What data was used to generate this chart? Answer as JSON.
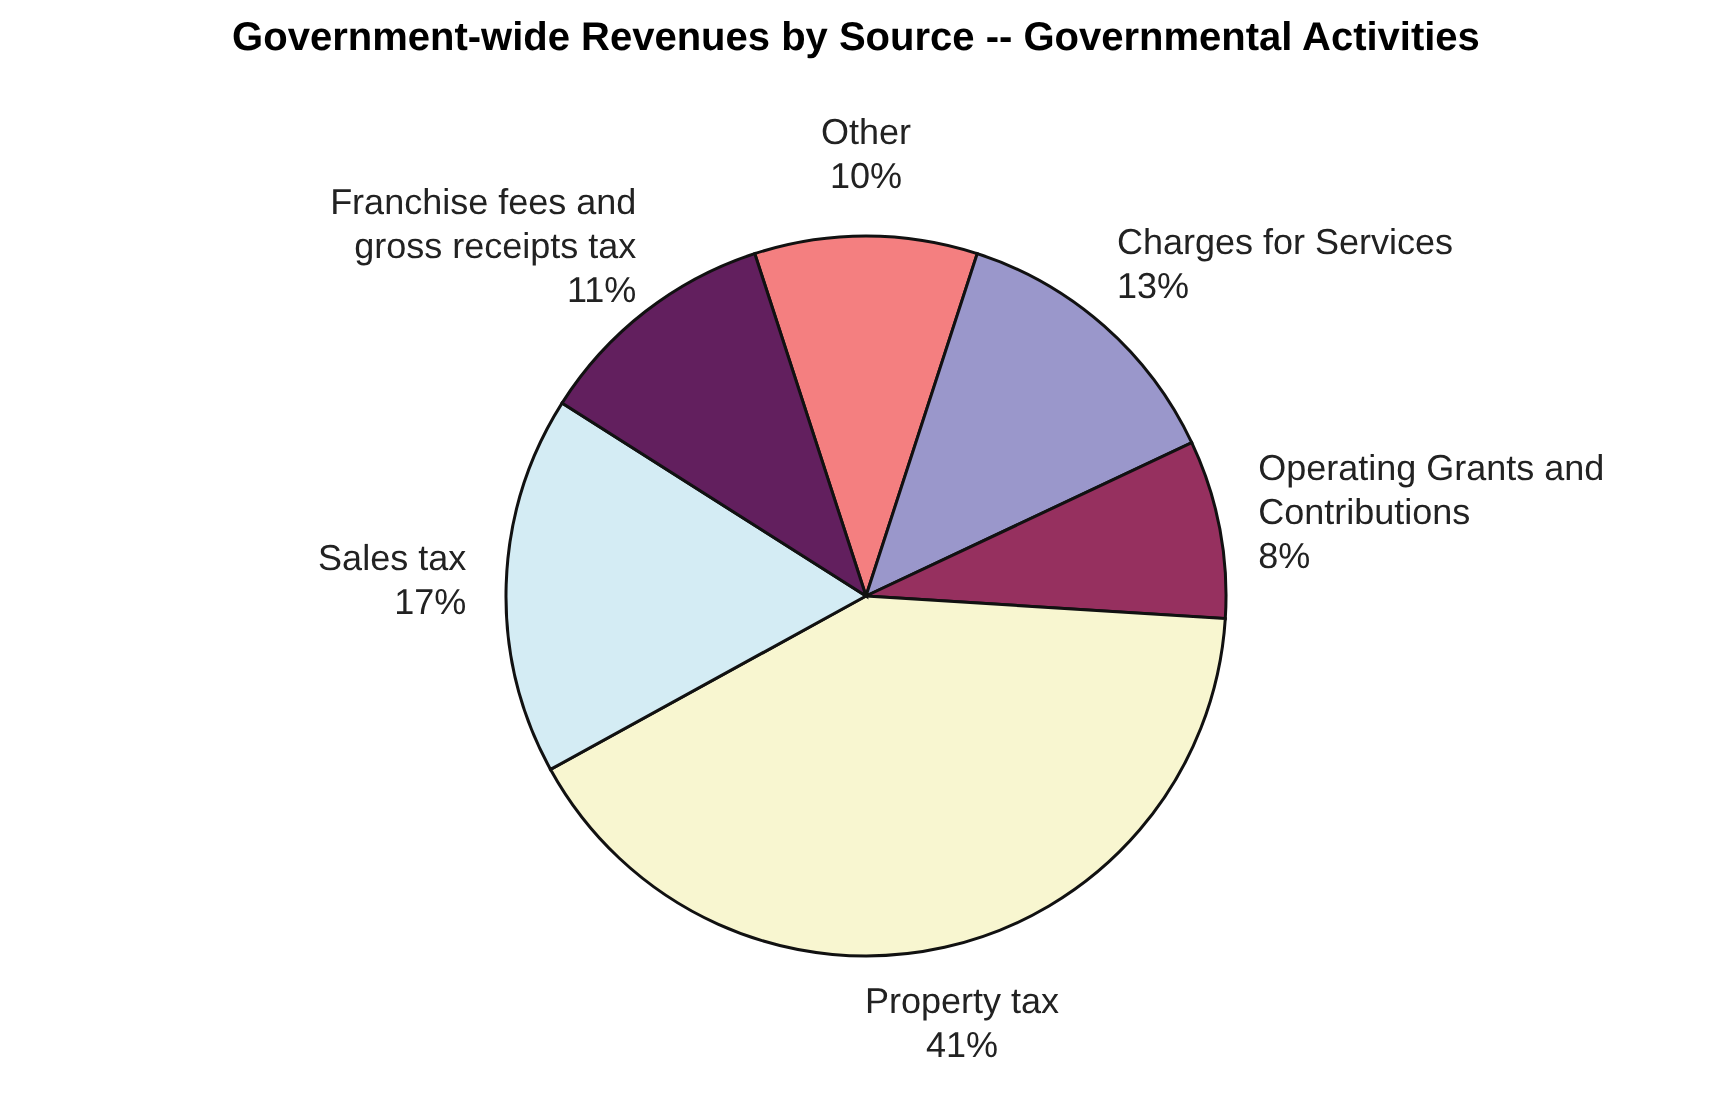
{
  "chart_data": {
    "type": "pie",
    "title": "Government-wide Revenues by Source -- Governmental Activities",
    "categories": [
      "Other",
      "Charges for Services",
      "Operating Grants and Contributions",
      "Property tax",
      "Sales tax",
      "Franchise fees and gross receipts tax"
    ],
    "values": [
      10,
      13,
      8,
      41,
      17,
      11
    ],
    "value_labels": [
      "10%",
      "13%",
      "8%",
      "41%",
      "17%",
      "11%"
    ],
    "colors": [
      "#f47f80",
      "#9a97cb",
      "#96305f",
      "#f8f6d0",
      "#d4ecf4",
      "#621f5e"
    ]
  }
}
